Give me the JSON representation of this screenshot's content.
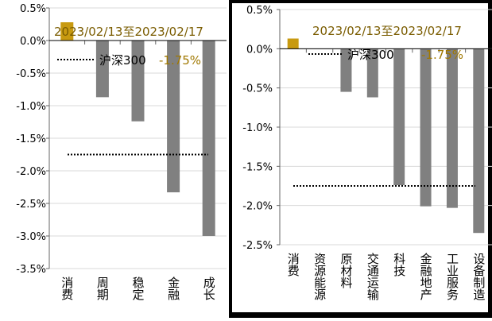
{
  "chart_data": [
    {
      "type": "bar",
      "title": "2023/02/13至2023/02/17",
      "categories": [
        "消费",
        "周期",
        "稳定",
        "金融",
        "成长"
      ],
      "values": [
        0.28,
        -0.87,
        -1.24,
        -2.33,
        -3.0
      ],
      "highlight_color": "#C89A10",
      "bar_color": "#808080",
      "ylim": [
        -3.5,
        0.5
      ],
      "yticks": [
        "0.5%",
        "0.0%",
        "-0.5%",
        "-1.0%",
        "-1.5%",
        "-2.0%",
        "-2.5%",
        "-3.0%",
        "-3.5%"
      ],
      "grid": true,
      "reference": {
        "label": "沪深300",
        "value": -1.75,
        "value_label": "-1.75%"
      }
    },
    {
      "type": "bar",
      "title": "2023/02/13至2023/02/17",
      "categories": [
        "消费",
        "资源能源",
        "原材料",
        "交通运输",
        "科技",
        "金融地产",
        "工业服务",
        "设备制造"
      ],
      "values": [
        0.13,
        0.0,
        -0.55,
        -0.62,
        -1.74,
        -2.01,
        -2.03,
        -2.35
      ],
      "highlight_color": "#C89A10",
      "bar_color": "#808080",
      "ylim": [
        -2.5,
        0.5
      ],
      "yticks": [
        "0.5%",
        "0.0%",
        "-0.5%",
        "-1.0%",
        "-1.5%",
        "-2.0%",
        "-2.5%"
      ],
      "grid": true,
      "reference": {
        "label": "沪深300",
        "value": -1.75,
        "value_label": "-1.75%"
      }
    }
  ]
}
